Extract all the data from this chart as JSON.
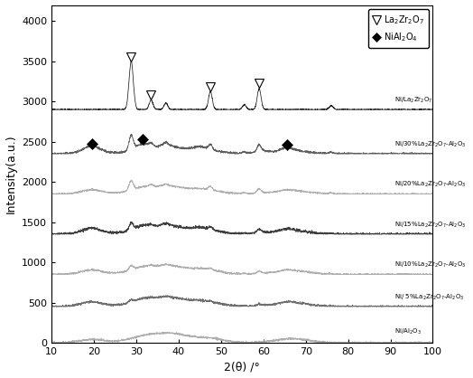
{
  "xlabel": "2(θ) /°",
  "ylabel": "Intensity(a.u.)",
  "xlim": [
    10,
    100
  ],
  "ylim": [
    0,
    4200
  ],
  "yticks": [
    0,
    500,
    1000,
    1500,
    2000,
    2500,
    3000,
    3500,
    4000
  ],
  "xticks": [
    10,
    20,
    30,
    40,
    50,
    60,
    70,
    80,
    90,
    100
  ],
  "series_labels": [
    "Ni/Al$_2$O$_3$",
    "Ni/ 5%La$_2$Zr$_2$O$_7$-Al$_2$O$_3$",
    "Ni/10%La$_2$Zr$_2$O$_7$-Al$_2$O$_3$",
    "Ni/15%La$_2$Zr$_2$O$_7$-Al$_2$O$_3$",
    "Ni/20%La$_2$Zr$_2$O$_7$-Al$_2$O$_3$",
    "Ni/30%La$_2$Zr$_2$O$_7$-Al$_2$O$_3$",
    "Ni/La$_2$Zr$_2$O$_7$"
  ],
  "series_colors": [
    "#aaaaaa",
    "#666666",
    "#aaaaaa",
    "#333333",
    "#aaaaaa",
    "#555555",
    "#111111"
  ],
  "offsets": [
    0,
    450,
    850,
    1350,
    1850,
    2350,
    2900
  ],
  "lza_triangle_2theta": [
    28.8,
    33.5,
    47.5,
    59.0
  ],
  "nial_diamond_2theta": [
    19.5,
    31.5,
    65.5
  ],
  "legend_triangle_label": "La$_2$Zr$_2$O$_7$",
  "legend_diamond_label": "NiAl$_2$O$_4$"
}
